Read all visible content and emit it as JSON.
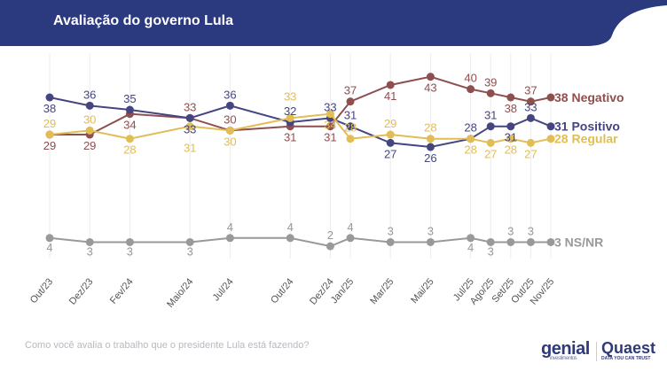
{
  "header": {
    "title": "Avaliação do governo Lula"
  },
  "footer": {
    "question": "Como você avalia o trabalho que o presidente Lula está fazendo?",
    "logo_genial": "genial",
    "logo_genial_sub": "investimentos",
    "logo_quaest": "Quaest",
    "logo_quaest_sub": "DATA YOU CAN TRUST"
  },
  "chart_data": {
    "type": "line",
    "title": "Avaliação do governo Lula",
    "categories": [
      "Out/23",
      "Dez/23",
      "Fev/24",
      "Maio/24",
      "Jul/24",
      "Out/24",
      "Dez/24",
      "Jan/25",
      "Mar/25",
      "Mai/25",
      "Jul/25",
      "Ago/25",
      "Set/25",
      "Out/25",
      "Nov/25"
    ],
    "x_month_index": [
      0,
      2,
      4,
      7,
      9,
      12,
      14,
      15,
      17,
      19,
      21,
      22,
      23,
      24,
      25
    ],
    "series": [
      {
        "name": "Negativo",
        "end_label": "38 Negativo",
        "color": "#8e4f4f",
        "values": [
          29,
          29,
          34,
          33,
          30,
          31,
          31,
          37,
          41,
          43,
          40,
          39,
          38,
          37,
          38
        ],
        "label_pos": [
          1,
          1,
          1,
          -1,
          -1,
          1,
          1,
          -1,
          1,
          1,
          -1,
          -1,
          1,
          -1,
          0
        ]
      },
      {
        "name": "Positivo",
        "end_label": "31 Positivo",
        "color": "#45457f",
        "values": [
          38,
          36,
          35,
          33,
          36,
          32,
          33,
          31,
          27,
          26,
          28,
          31,
          31,
          33,
          31
        ],
        "label_pos": [
          1,
          -1,
          -1,
          -1,
          -1,
          1,
          -1,
          -1,
          1,
          1,
          -1,
          -1,
          1,
          -1,
          0
        ]
      },
      {
        "name": "Regular",
        "end_label": "28 Regular",
        "color": "#e2bd55",
        "values": [
          29,
          30,
          28,
          31,
          30,
          33,
          34,
          28,
          29,
          28,
          28,
          27,
          28,
          27,
          28
        ],
        "label_pos": [
          -1,
          -1,
          1,
          1,
          1,
          -1,
          -1,
          -1,
          -1,
          -1,
          1,
          1,
          1,
          1,
          0
        ]
      },
      {
        "name": "NS/NR",
        "end_label": "3 NS/NR",
        "color": "#999999",
        "values": [
          4,
          3,
          3,
          3,
          4,
          4,
          2,
          4,
          3,
          3,
          4,
          3,
          3,
          3,
          3
        ],
        "label_pos": [
          1,
          1,
          1,
          1,
          -1,
          -1,
          -1,
          -1,
          -1,
          -1,
          1,
          1,
          -1,
          -1,
          0
        ]
      }
    ]
  }
}
